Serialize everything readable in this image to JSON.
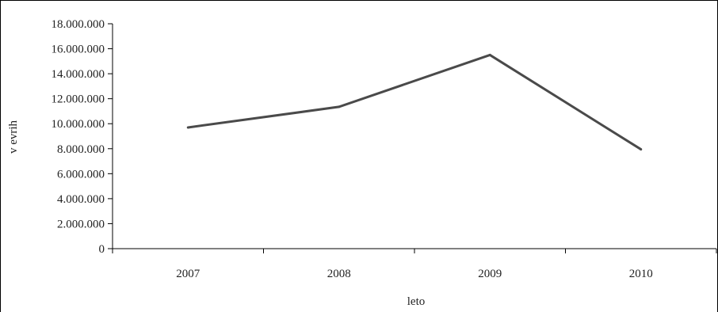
{
  "chart_data": {
    "type": "line",
    "title": "",
    "xlabel": "leto",
    "ylabel": "v evrih",
    "categories": [
      "2007",
      "2008",
      "2009",
      "2010"
    ],
    "series": [
      {
        "values": [
          9700000,
          11350000,
          15500000,
          7950000
        ]
      }
    ],
    "ylim": [
      0,
      18000000
    ],
    "y_ticks": [
      0,
      2000000,
      4000000,
      6000000,
      8000000,
      10000000,
      12000000,
      14000000,
      16000000,
      18000000
    ],
    "y_tick_labels": [
      "0",
      "2.000.000",
      "4.000.000",
      "6.000.000",
      "8.000.000",
      "10.000.000",
      "12.000.000",
      "14.000.000",
      "16.000.000",
      "18.000.000"
    ],
    "grid": false,
    "legend": "none",
    "line_color": "#4a4a4a"
  }
}
